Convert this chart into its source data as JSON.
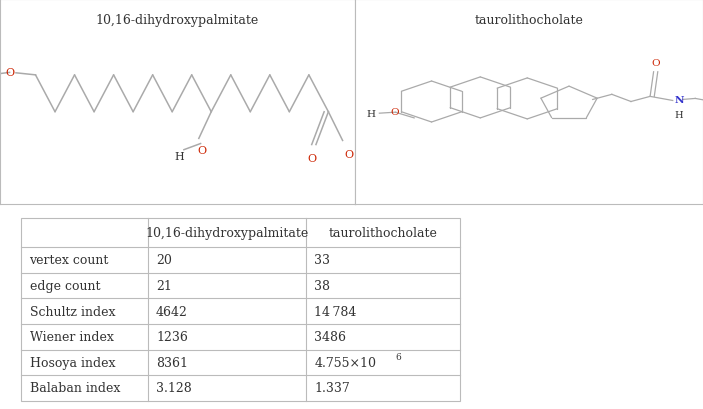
{
  "col1_header": "10,16-dihydroxypalmitate",
  "col2_header": "taurolithocholate",
  "rows": [
    {
      "label": "vertex count",
      "val1": "20",
      "val2": "33"
    },
    {
      "label": "edge count",
      "val1": "21",
      "val2": "38"
    },
    {
      "label": "Schultz index",
      "val1": "4642",
      "val2": "14 784"
    },
    {
      "label": "Wiener index",
      "val1": "1236",
      "val2": "3486"
    },
    {
      "label": "Hosoya index",
      "val1": "8361",
      "val2": "4.755×10^6"
    },
    {
      "label": "Balaban index",
      "val1": "3.128",
      "val2": "1.337"
    }
  ],
  "border_color": "#bbbbbb",
  "text_color": "#333333",
  "bond_color": "#aaaaaa",
  "oxygen_color": "#cc2200",
  "nitrogen_color": "#3333cc",
  "sulfur_color": "#aaaa00",
  "background": "#ffffff",
  "fig_width": 7.03,
  "fig_height": 4.1,
  "mol1_title": "10,16-dihydroxypalmitate",
  "mol2_title": "taurolithocholate"
}
